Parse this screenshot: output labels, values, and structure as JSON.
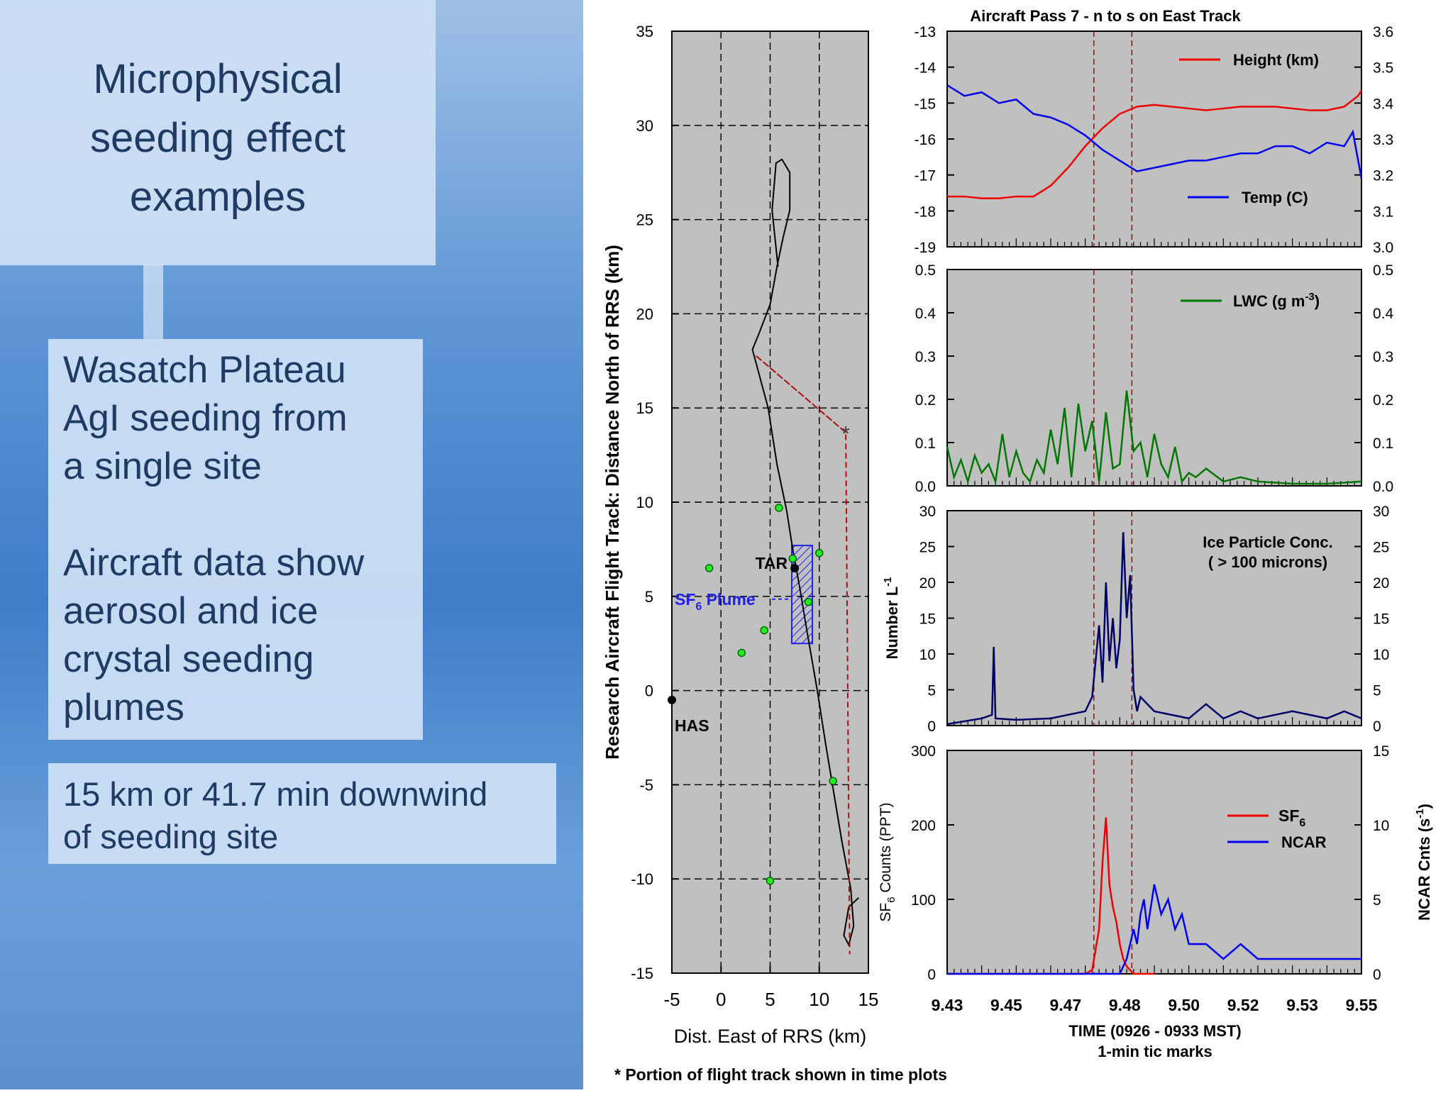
{
  "slide": {
    "title_lines": [
      "Microphysical",
      "seeding effect",
      "examples"
    ],
    "body_lines_1": [
      "Wasatch Plateau",
      "AgI seeding from",
      "a single site"
    ],
    "body_lines_2": [
      "Aircraft data show",
      "aerosol and ice",
      "crystal seeding",
      "plumes"
    ],
    "note_lines": [
      "15 km or 41.7 min downwind",
      "of seeding site"
    ]
  },
  "footnote": "* Portion of flight track shown in time plots",
  "chart_data": [
    {
      "id": "map",
      "type": "line",
      "xlabel": "Dist. East of RRS (km)",
      "ylabel": "Research Aircraft Flight Track: Distance North of RRS (km)",
      "xlim": [
        -5,
        15
      ],
      "ylim": [
        -15,
        35
      ],
      "xticks": [
        -5,
        0,
        5,
        10,
        15
      ],
      "yticks": [
        -15,
        -10,
        -5,
        0,
        5,
        10,
        15,
        20,
        25,
        30,
        35
      ],
      "grid": true,
      "flight_track": [
        [
          5.8,
          22.5
        ],
        [
          5.2,
          25.5
        ],
        [
          5.6,
          28
        ],
        [
          6.2,
          28.2
        ],
        [
          7,
          27.5
        ],
        [
          7,
          25.5
        ],
        [
          6.3,
          24
        ],
        [
          5.7,
          22.5
        ],
        [
          5,
          20.5
        ],
        [
          3.9,
          19
        ],
        [
          3.2,
          18.1
        ],
        [
          4.8,
          15
        ],
        [
          5.7,
          12
        ],
        [
          6.7,
          9.5
        ],
        [
          7.3,
          7.5
        ],
        [
          8,
          5.5
        ],
        [
          8.8,
          3
        ],
        [
          9.8,
          0
        ],
        [
          10.7,
          -3
        ],
        [
          11.5,
          -5.5
        ],
        [
          12.3,
          -8
        ],
        [
          13.2,
          -10.5
        ],
        [
          13.5,
          -12.5
        ],
        [
          13,
          -13.5
        ],
        [
          12.5,
          -13
        ],
        [
          13,
          -11.5
        ],
        [
          14,
          -11
        ]
      ],
      "dashed_track": [
        [
          12.7,
          13.7
        ],
        [
          3.5,
          17.8
        ],
        [
          12.7,
          13.7
        ],
        [
          13.1,
          -14
        ]
      ],
      "stars": [
        [
          12.7,
          13.7
        ]
      ],
      "sites": [
        {
          "name": "TAR",
          "x": 7.5,
          "y": 6.5
        },
        {
          "name": "HAS",
          "x": -5,
          "y": -0.5
        }
      ],
      "green_points": [
        [
          5.9,
          9.7
        ],
        [
          -1.2,
          6.5
        ],
        [
          7.3,
          7
        ],
        [
          10,
          7.3
        ],
        [
          8.9,
          4.7
        ],
        [
          4.4,
          3.2
        ],
        [
          2.1,
          2
        ],
        [
          11.4,
          -4.8
        ],
        [
          5,
          -10.1
        ]
      ],
      "plume_box": {
        "label": "SF",
        "subscript": "6",
        "label_after": " Plume",
        "x0": 7.2,
        "x1": 9.3,
        "y0": 2.5,
        "y1": 7.7
      }
    },
    {
      "id": "height-temp",
      "type": "line",
      "title": "Aircraft Pass 7 - n to s on East Track",
      "ylim_left": [
        -19,
        -13
      ],
      "ylim_right": [
        3.0,
        3.6
      ],
      "yticks_left": [
        -13,
        -14,
        -15,
        -16,
        -17,
        -18,
        -19
      ],
      "yticks_right": [
        3.6,
        3.5,
        3.4,
        3.3,
        3.2,
        3.1,
        3.0
      ],
      "xlim": [
        9.43,
        9.55
      ],
      "series": [
        {
          "name": "Height (km)",
          "axis": "right",
          "color": "#ee0000",
          "x": [
            9.43,
            9.435,
            9.44,
            9.445,
            9.45,
            9.455,
            9.46,
            9.465,
            9.47,
            9.475,
            9.48,
            9.485,
            9.49,
            9.495,
            9.5,
            9.505,
            9.51,
            9.515,
            9.52,
            9.525,
            9.53,
            9.535,
            9.54,
            9.545,
            9.549,
            9.55
          ],
          "y": [
            3.14,
            3.14,
            3.135,
            3.135,
            3.14,
            3.14,
            3.17,
            3.22,
            3.28,
            3.33,
            3.37,
            3.39,
            3.395,
            3.39,
            3.385,
            3.38,
            3.385,
            3.39,
            3.39,
            3.39,
            3.385,
            3.38,
            3.38,
            3.39,
            3.42,
            3.435
          ]
        },
        {
          "name": "Temp (C)",
          "axis": "left",
          "color": "#0000ee",
          "x": [
            9.43,
            9.435,
            9.44,
            9.445,
            9.45,
            9.455,
            9.46,
            9.465,
            9.47,
            9.475,
            9.48,
            9.485,
            9.49,
            9.495,
            9.5,
            9.505,
            9.51,
            9.515,
            9.52,
            9.525,
            9.53,
            9.535,
            9.54,
            9.545,
            9.5475,
            9.55
          ],
          "y": [
            -14.5,
            -14.8,
            -14.7,
            -15,
            -14.9,
            -15.3,
            -15.4,
            -15.6,
            -15.9,
            -16.3,
            -16.6,
            -16.9,
            -16.8,
            -16.7,
            -16.6,
            -16.6,
            -16.5,
            -16.4,
            -16.4,
            -16.2,
            -16.2,
            -16.4,
            -16.1,
            -16.2,
            -15.8,
            -17.1
          ]
        }
      ]
    },
    {
      "id": "lwc",
      "type": "line",
      "ylim": [
        0,
        0.5
      ],
      "yticks": [
        0.5,
        0.4,
        0.3,
        0.2,
        0.1,
        0.0
      ],
      "xlim": [
        9.43,
        9.55
      ],
      "series": [
        {
          "name": "LWC (g m-3)",
          "color": "#007700",
          "x": [
            9.43,
            9.432,
            9.434,
            9.436,
            9.438,
            9.44,
            9.442,
            9.444,
            9.446,
            9.448,
            9.45,
            9.452,
            9.454,
            9.456,
            9.458,
            9.46,
            9.462,
            9.464,
            9.466,
            9.468,
            9.47,
            9.472,
            9.474,
            9.476,
            9.478,
            9.48,
            9.482,
            9.484,
            9.486,
            9.488,
            9.49,
            9.492,
            9.494,
            9.496,
            9.498,
            9.5,
            9.502,
            9.505,
            9.51,
            9.515,
            9.52,
            9.53,
            9.54,
            9.55
          ],
          "y": [
            0.09,
            0.02,
            0.06,
            0.01,
            0.07,
            0.03,
            0.05,
            0.01,
            0.12,
            0.02,
            0.08,
            0.03,
            0.01,
            0.06,
            0.03,
            0.13,
            0.05,
            0.18,
            0.02,
            0.19,
            0.08,
            0.15,
            0.01,
            0.17,
            0.04,
            0.05,
            0.22,
            0.08,
            0.1,
            0.02,
            0.12,
            0.05,
            0.02,
            0.09,
            0.01,
            0.03,
            0.02,
            0.04,
            0.01,
            0.02,
            0.01,
            0.005,
            0.005,
            0.01
          ]
        }
      ]
    },
    {
      "id": "ice",
      "type": "line",
      "ylabel": "Number L",
      "ylabel_sup": "-1",
      "annotation_lines": [
        "Ice Particle Conc.",
        "( > 100 microns)"
      ],
      "ylim": [
        0,
        30
      ],
      "yticks": [
        30,
        25,
        20,
        15,
        10,
        5,
        0
      ],
      "xlim": [
        9.43,
        9.55
      ],
      "series": [
        {
          "name": "Ice Particle Conc.",
          "color": "#000066",
          "x": [
            9.43,
            9.44,
            9.443,
            9.4435,
            9.444,
            9.45,
            9.46,
            9.47,
            9.472,
            9.474,
            9.475,
            9.476,
            9.477,
            9.478,
            9.479,
            9.48,
            9.481,
            9.482,
            9.483,
            9.484,
            9.485,
            9.486,
            9.488,
            9.49,
            9.495,
            9.5,
            9.505,
            9.51,
            9.515,
            9.52,
            9.53,
            9.54,
            9.545,
            9.55
          ],
          "y": [
            0.2,
            1,
            1.5,
            11,
            1,
            0.8,
            1,
            2,
            4,
            14,
            6,
            20,
            9,
            15,
            8,
            12,
            27,
            15,
            21,
            5,
            2,
            4,
            3,
            2,
            1.5,
            1,
            3,
            1,
            2,
            1,
            2,
            1,
            2,
            1
          ]
        }
      ]
    },
    {
      "id": "sf6-ncar",
      "type": "line",
      "ylabel_left_pre": "SF",
      "ylabel_left_sub": "6",
      "ylabel_left_post": " Counts (PPT)",
      "ylabel_right_pre": "NCAR Cnts (s",
      "ylabel_right_sup": "-1",
      "ylabel_right_post": ")",
      "ylim_left": [
        0,
        300
      ],
      "ylim_right": [
        0,
        15
      ],
      "yticks_left": [
        300,
        200,
        100,
        0
      ],
      "yticks_right": [
        15,
        10,
        5,
        0
      ],
      "xlabel": "TIME (0926 - 0933 MST)",
      "xlabel2": "1-min tic marks",
      "xlim": [
        9.43,
        9.55
      ],
      "xticks": [
        "9.43",
        "9.45",
        "9.47",
        "9.48",
        "9.50",
        "9.52",
        "9.53",
        "9.55"
      ],
      "dashed_x": [
        9.4725,
        9.4835
      ],
      "series": [
        {
          "name": "SF6",
          "axis": "left",
          "color": "#ee0000",
          "x": [
            9.43,
            9.47,
            9.472,
            9.474,
            9.475,
            9.476,
            9.477,
            9.478,
            9.479,
            9.48,
            9.481,
            9.482,
            9.483,
            9.484,
            9.485,
            9.49
          ],
          "y": [
            0,
            0,
            5,
            60,
            150,
            210,
            120,
            90,
            70,
            40,
            20,
            10,
            5,
            0,
            0,
            0
          ]
        },
        {
          "name": "NCAR",
          "axis": "right",
          "color": "#0000ee",
          "x": [
            9.43,
            9.48,
            9.482,
            9.484,
            9.485,
            9.486,
            9.487,
            9.488,
            9.49,
            9.492,
            9.494,
            9.496,
            9.498,
            9.5,
            9.505,
            9.51,
            9.515,
            9.52,
            9.53,
            9.54,
            9.55
          ],
          "y": [
            0,
            0,
            1,
            3,
            2,
            4,
            5,
            3,
            6,
            4,
            5,
            3,
            4,
            2,
            2,
            1,
            2,
            1,
            1,
            1,
            1
          ]
        }
      ]
    }
  ]
}
